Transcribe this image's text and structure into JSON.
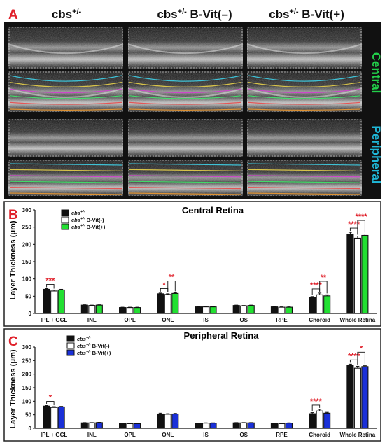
{
  "panel_a": {
    "letter": "A",
    "column_headers": [
      {
        "base": "cbs",
        "sup": "+/-",
        "suffix": ""
      },
      {
        "base": "cbs",
        "sup": "+/-",
        "suffix": " B-Vit(–)"
      },
      {
        "base": "cbs",
        "sup": "+/-",
        "suffix": " B-Vit(+)"
      }
    ],
    "region_labels": {
      "central": "Central",
      "peripheral": "Peripheral"
    },
    "colors": {
      "central": "#22d04a",
      "peripheral": "#1fb8d8",
      "letter": "#e0202a"
    }
  },
  "chart_data": [
    {
      "panel": "B",
      "type": "bar",
      "title": "Central Retina",
      "ylabel": "Layer Thickness (μm)",
      "ylim": [
        0,
        300
      ],
      "yticks": [
        "0",
        "50",
        "100",
        "150",
        "200",
        "250",
        "300"
      ],
      "categories": [
        "IPL + GCL",
        "INL",
        "OPL",
        "ONL",
        "IS",
        "OS",
        "RPE",
        "Choroid",
        "Whole Retina"
      ],
      "legend": [
        {
          "base": "cbs",
          "sup": "+/-",
          "suffix": ""
        },
        {
          "base": "cbs",
          "sup": "+/-",
          "suffix": " B-Vit(-)"
        },
        {
          "base": "cbs",
          "sup": "+/-",
          "suffix": " B-Vit(+)"
        }
      ],
      "series": [
        {
          "values": [
            70,
            24,
            17,
            57,
            19,
            23,
            19,
            46,
            230
          ],
          "errors": [
            2,
            1,
            1,
            2,
            1,
            1,
            1,
            3,
            5
          ],
          "color": "#111111"
        },
        {
          "values": [
            65,
            23,
            17,
            55,
            19,
            22,
            18,
            54,
            218
          ],
          "errors": [
            3,
            1,
            1,
            2,
            1,
            1,
            1,
            5,
            6
          ],
          "color": "#ffffff"
        },
        {
          "values": [
            68,
            24,
            17,
            58,
            19,
            23,
            18,
            51,
            226
          ],
          "errors": [
            2,
            1,
            1,
            2,
            1,
            1,
            1,
            3,
            4
          ],
          "color": "#22e032"
        }
      ],
      "significance": [
        {
          "category": 0,
          "a": 0,
          "b": 1,
          "label": "***"
        },
        {
          "category": 3,
          "a": 0,
          "b": 1,
          "label": "*"
        },
        {
          "category": 3,
          "a": 1,
          "b": 2,
          "label": "**"
        },
        {
          "category": 7,
          "a": 0,
          "b": 1,
          "label": "****"
        },
        {
          "category": 7,
          "a": 1,
          "b": 2,
          "label": "**"
        },
        {
          "category": 8,
          "a": 0,
          "b": 1,
          "label": "****"
        },
        {
          "category": 8,
          "a": 1,
          "b": 2,
          "label": "****"
        }
      ],
      "colors": {
        "significance": "#e0202a"
      }
    },
    {
      "panel": "C",
      "type": "bar",
      "title": "Peripheral Retina",
      "ylabel": "Layer Thickness (μm)",
      "ylim": [
        0,
        300
      ],
      "yticks": [
        "0",
        "50",
        "100",
        "150",
        "200",
        "250",
        "300"
      ],
      "categories": [
        "IPL + GCL",
        "INL",
        "OPL",
        "ONL",
        "IS",
        "OS",
        "RPE",
        "Choroid",
        "Whole Retina"
      ],
      "legend": [
        {
          "base": "cbs",
          "sup": "+/-",
          "suffix": ""
        },
        {
          "base": "cbs",
          "sup": "+/-",
          "suffix": " B-Vit(-)"
        },
        {
          "base": "cbs",
          "sup": "+/-",
          "suffix": " B-Vit(+)"
        }
      ],
      "series": [
        {
          "values": [
            82,
            20,
            17,
            53,
            18,
            20,
            18,
            54,
            232
          ],
          "errors": [
            2,
            1,
            1,
            3,
            1,
            1,
            1,
            4,
            5
          ],
          "color": "#111111"
        },
        {
          "values": [
            77,
            20,
            17,
            52,
            19,
            20,
            17,
            64,
            222
          ],
          "errors": [
            3,
            1,
            1,
            2,
            1,
            1,
            1,
            6,
            7
          ],
          "color": "#ffffff"
        },
        {
          "values": [
            79,
            21,
            17,
            53,
            19,
            20,
            19,
            56,
            228
          ],
          "errors": [
            2,
            1,
            1,
            2,
            1,
            1,
            1,
            3,
            3
          ],
          "color": "#1a30d8"
        }
      ],
      "significance": [
        {
          "category": 0,
          "a": 0,
          "b": 1,
          "label": "*"
        },
        {
          "category": 7,
          "a": 0,
          "b": 1,
          "label": "****"
        },
        {
          "category": 8,
          "a": 0,
          "b": 1,
          "label": "****"
        },
        {
          "category": 8,
          "a": 1,
          "b": 2,
          "label": "*"
        }
      ],
      "colors": {
        "significance": "#e0202a"
      }
    }
  ]
}
